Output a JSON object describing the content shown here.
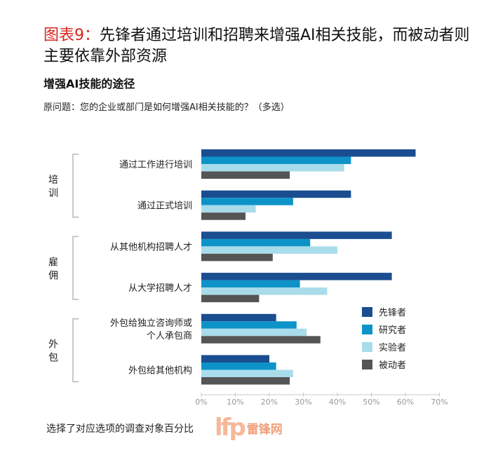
{
  "header": {
    "title_prefix": "图表9：",
    "title_text": "先锋者通过培训和招聘来增强AI相关技能，而被动者则主要依靠外部资源",
    "subtitle": "增强AI技能的途径",
    "question": "原问题：您的企业或部门是如何增强AI相关技能的？（多选）"
  },
  "footer": {
    "note": "选择了对应选项的调查对象百分比"
  },
  "watermark": {
    "text": "雷锋网"
  },
  "colors": {
    "先锋者": "#1b4d91",
    "研究者": "#0e93c9",
    "实验者": "#a9dcea",
    "被动者": "#555555",
    "bracket": "#b8b8b8"
  },
  "chart_data": {
    "type": "bar",
    "orientation": "horizontal",
    "title": "增强AI技能的途径",
    "xlabel": "选择了对应选项的调查对象百分比",
    "xlim": [
      0,
      70
    ],
    "xticks": [
      "0%",
      "10%",
      "20%",
      "30%",
      "40%",
      "50%",
      "60%",
      "70%"
    ],
    "groups": [
      {
        "label": "培训",
        "categories": [
          0,
          1
        ]
      },
      {
        "label": "雇佣",
        "categories": [
          2,
          3
        ]
      },
      {
        "label": "外包",
        "categories": [
          4,
          5
        ]
      }
    ],
    "categories": [
      [
        "通过工作进行培训"
      ],
      [
        "通过正式培训"
      ],
      [
        "从其他机构招聘人才"
      ],
      [
        "从大学招聘人才"
      ],
      [
        "外包给独立咨询师或",
        "个人承包商"
      ],
      [
        "外包给其他机构"
      ]
    ],
    "series": [
      {
        "name": "先锋者",
        "values": [
          63,
          44,
          56,
          56,
          22,
          20
        ]
      },
      {
        "name": "研究者",
        "values": [
          44,
          27,
          32,
          29,
          28,
          22
        ]
      },
      {
        "name": "实验者",
        "values": [
          42,
          16,
          40,
          37,
          31,
          27
        ]
      },
      {
        "name": "被动者",
        "values": [
          26,
          13,
          21,
          17,
          35,
          26
        ]
      }
    ],
    "legend_position": "bottom-right",
    "grid": false
  }
}
